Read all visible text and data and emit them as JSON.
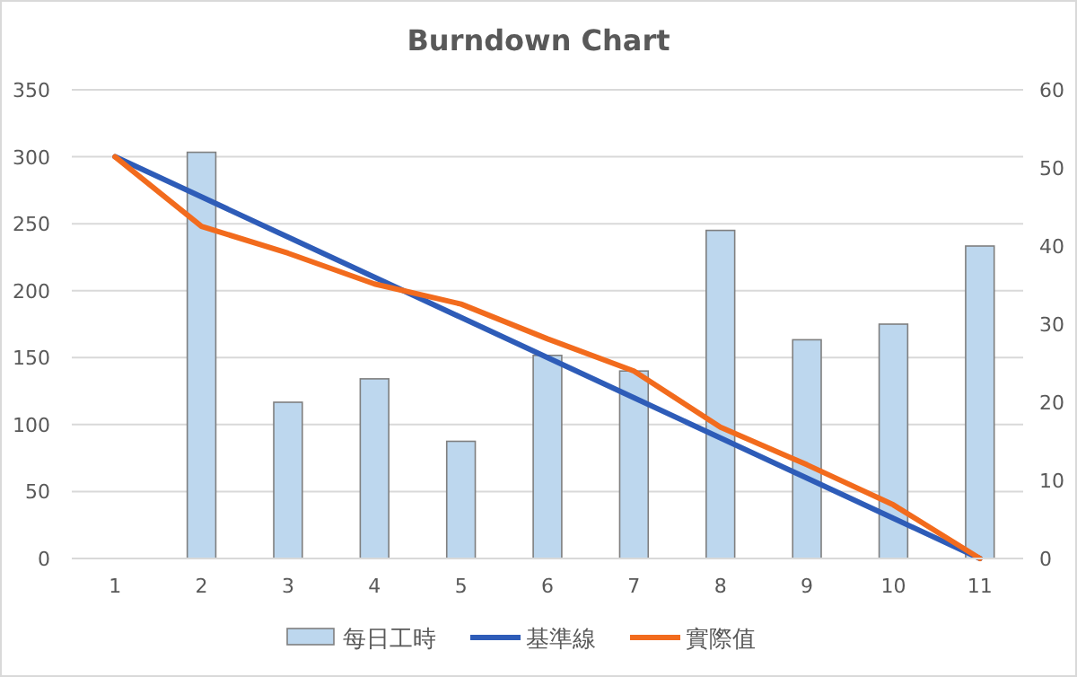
{
  "chart_data": {
    "type": "bar",
    "title": "Burndown Chart",
    "categories": [
      "1",
      "2",
      "3",
      "4",
      "5",
      "6",
      "7",
      "8",
      "9",
      "10",
      "11"
    ],
    "series": [
      {
        "name": "每日工時",
        "axis": "y2",
        "color": "#bdd7ee",
        "values": [
          null,
          52,
          20,
          23,
          15,
          26,
          24,
          42,
          28,
          30,
          40
        ]
      },
      {
        "name": "基準線",
        "type": "line",
        "color": "#2e5cb8",
        "values": [
          300,
          270,
          240,
          210,
          180,
          150,
          120,
          90,
          60,
          30,
          0
        ]
      },
      {
        "name": "實際值",
        "type": "line",
        "color": "#f26b1d",
        "values": [
          300,
          248,
          228,
          205,
          190,
          164,
          140,
          98,
          70,
          40,
          0
        ]
      }
    ],
    "ylim": [
      0,
      350
    ],
    "yticks": [
      0,
      50,
      100,
      150,
      200,
      250,
      300,
      350
    ],
    "y2lim": [
      0,
      60
    ],
    "y2ticks": [
      0,
      10,
      20,
      30,
      40,
      50,
      60
    ],
    "grid": "y",
    "legend": "bottom"
  }
}
